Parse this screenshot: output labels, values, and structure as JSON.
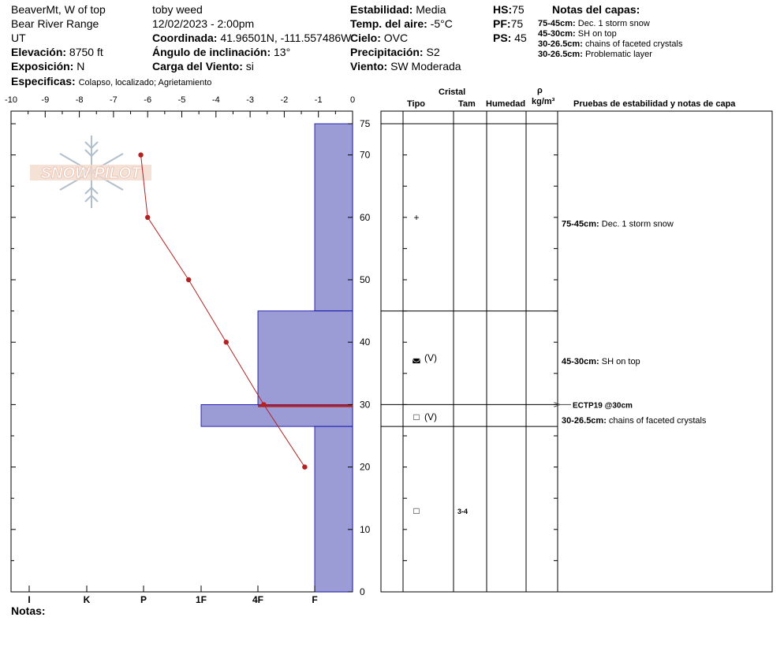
{
  "header": {
    "location": "BeaverMt, W of top",
    "range": "Bear River Range",
    "state": "UT",
    "observer": "toby weed",
    "datetime": "12/02/2023 - 2:00pm",
    "elevation_label": "Elevación:",
    "elevation_value": "8750 ft",
    "aspect_label": "Exposición:",
    "aspect_value": "N",
    "coord_label": "Coordinada:",
    "coord_value": "41.96501N, -111.557486W",
    "slope_label": "Ángulo de inclinación:",
    "slope_value": "13°",
    "wind_load_label": "Carga del Viento:",
    "wind_load_value": "si",
    "specifics_label": "Especificas:",
    "specifics_value": "Colapso, localizado;  Agrietamiento",
    "stability_label": "Estabilidad:",
    "stability_value": "Media",
    "air_temp_label": "Temp. del aire:",
    "air_temp_value": "-5°C",
    "sky_label": "Cielo:",
    "sky_value": "OVC",
    "precip_label": "Precipitación:",
    "precip_value": "S2",
    "wind_label": "Viento:",
    "wind_value": "SW Moderada",
    "hs_label": "HS:",
    "hs_value": "75",
    "pf_label": "PF:",
    "pf_value": "75",
    "ps_label": "PS:",
    "ps_value": "45",
    "layer_notes_title": "Notas del capas:",
    "layer_notes": [
      {
        "range": "75-45cm:",
        "text": "Dec. 1 storm snow"
      },
      {
        "range": "45-30cm:",
        "text": "SH on top"
      },
      {
        "range": "30-26.5cm:",
        "text": " chains of faceted crystals"
      },
      {
        "range": "30-26.5cm:",
        "text": "Problematic layer"
      }
    ]
  },
  "logo_text": "SNOW PILOT",
  "notes_label": "Notas:",
  "columns": {
    "crystal": "Cristal",
    "type": "Tipo",
    "size": "Tam",
    "moisture": "Humedad",
    "rho": "ρ",
    "density_unit": "kg/m³",
    "tests": "Pruebas de estabilidad y notas de capa"
  },
  "crystal_rows": [
    {
      "depth": 60,
      "symbol": "+",
      "form": "",
      "size": ""
    },
    {
      "depth": 37.5,
      "symbol": "◛",
      "form": "(V)",
      "size": ""
    },
    {
      "depth": 28,
      "symbol": "□",
      "form": "(V)",
      "size": ""
    },
    {
      "depth": 13,
      "symbol": "□",
      "form": "",
      "size": "3-4"
    }
  ],
  "layer_boundaries": [
    75,
    45,
    30,
    26.5
  ],
  "stability_notes": [
    {
      "depth": 59,
      "range": "75-45cm:",
      "text": "Dec. 1 storm snow"
    },
    {
      "depth": 37,
      "range": "45-30cm:",
      "text": "SH on top"
    },
    {
      "depth": 27.5,
      "range": "30-26.5cm:",
      "text": " chains of faceted crystals"
    }
  ],
  "test_result": {
    "depth": 30,
    "text": "ECTP19 @30cm"
  },
  "chart_data": {
    "type": "line",
    "title": "",
    "temperature_axis": {
      "ticks": [
        -10,
        -9,
        -8,
        -7,
        -6,
        -5,
        -4,
        -3,
        -2,
        -1,
        0
      ],
      "tick_labels": [
        "-10",
        "-9",
        "-8",
        "-7",
        "-6",
        "-5",
        "-4",
        "-3",
        "-2",
        "-1",
        "0"
      ],
      "range": [
        -10,
        0
      ]
    },
    "depth_axis": {
      "ticks": [
        0,
        10,
        20,
        30,
        40,
        50,
        60,
        70,
        75
      ],
      "tick_labels": [
        "0",
        "10",
        "20",
        "30",
        "40",
        "50",
        "60",
        "70",
        "75"
      ],
      "range": [
        0,
        75
      ]
    },
    "hardness_axis": {
      "tick_labels": [
        "I",
        "K",
        "P",
        "1F",
        "4F",
        "F"
      ]
    },
    "temperature_profile": {
      "color": "#b22222",
      "points": [
        {
          "depth": 70,
          "temp": -6.2
        },
        {
          "depth": 60,
          "temp": -6.0
        },
        {
          "depth": 50,
          "temp": -4.8
        },
        {
          "depth": 40,
          "temp": -3.7
        },
        {
          "depth": 30,
          "temp": -2.6
        },
        {
          "depth": 20,
          "temp": -1.4
        }
      ]
    },
    "hardness_layers": {
      "color": "#9b9bd6",
      "layers": [
        {
          "top": 75,
          "bottom": 45,
          "hardness": "F"
        },
        {
          "top": 45,
          "bottom": 30,
          "hardness": "4F"
        },
        {
          "top": 30,
          "bottom": 26.5,
          "hardness": "1F"
        },
        {
          "top": 26.5,
          "bottom": 0,
          "hardness": "F"
        }
      ]
    },
    "problematic_layer": {
      "top": 30,
      "bottom": 29.6,
      "color": "#b22222"
    }
  }
}
